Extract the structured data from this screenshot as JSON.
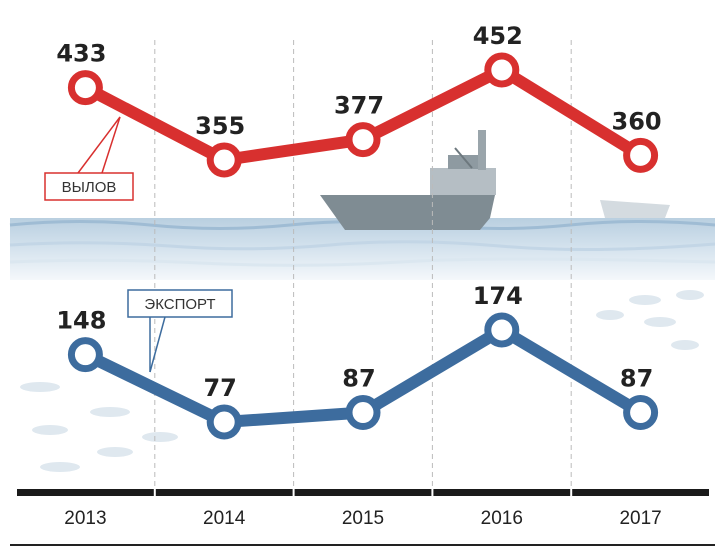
{
  "chart_data": {
    "type": "line",
    "categories": [
      "2013",
      "2014",
      "2015",
      "2016",
      "2017"
    ],
    "series": [
      {
        "name": "ВЫЛОВ",
        "color": "#d8302f",
        "values": [
          433,
          355,
          377,
          452,
          360
        ]
      },
      {
        "name": "ЭКСПОРТ",
        "color": "#3d6c9e",
        "values": [
          148,
          77,
          87,
          174,
          87
        ]
      }
    ]
  }
}
